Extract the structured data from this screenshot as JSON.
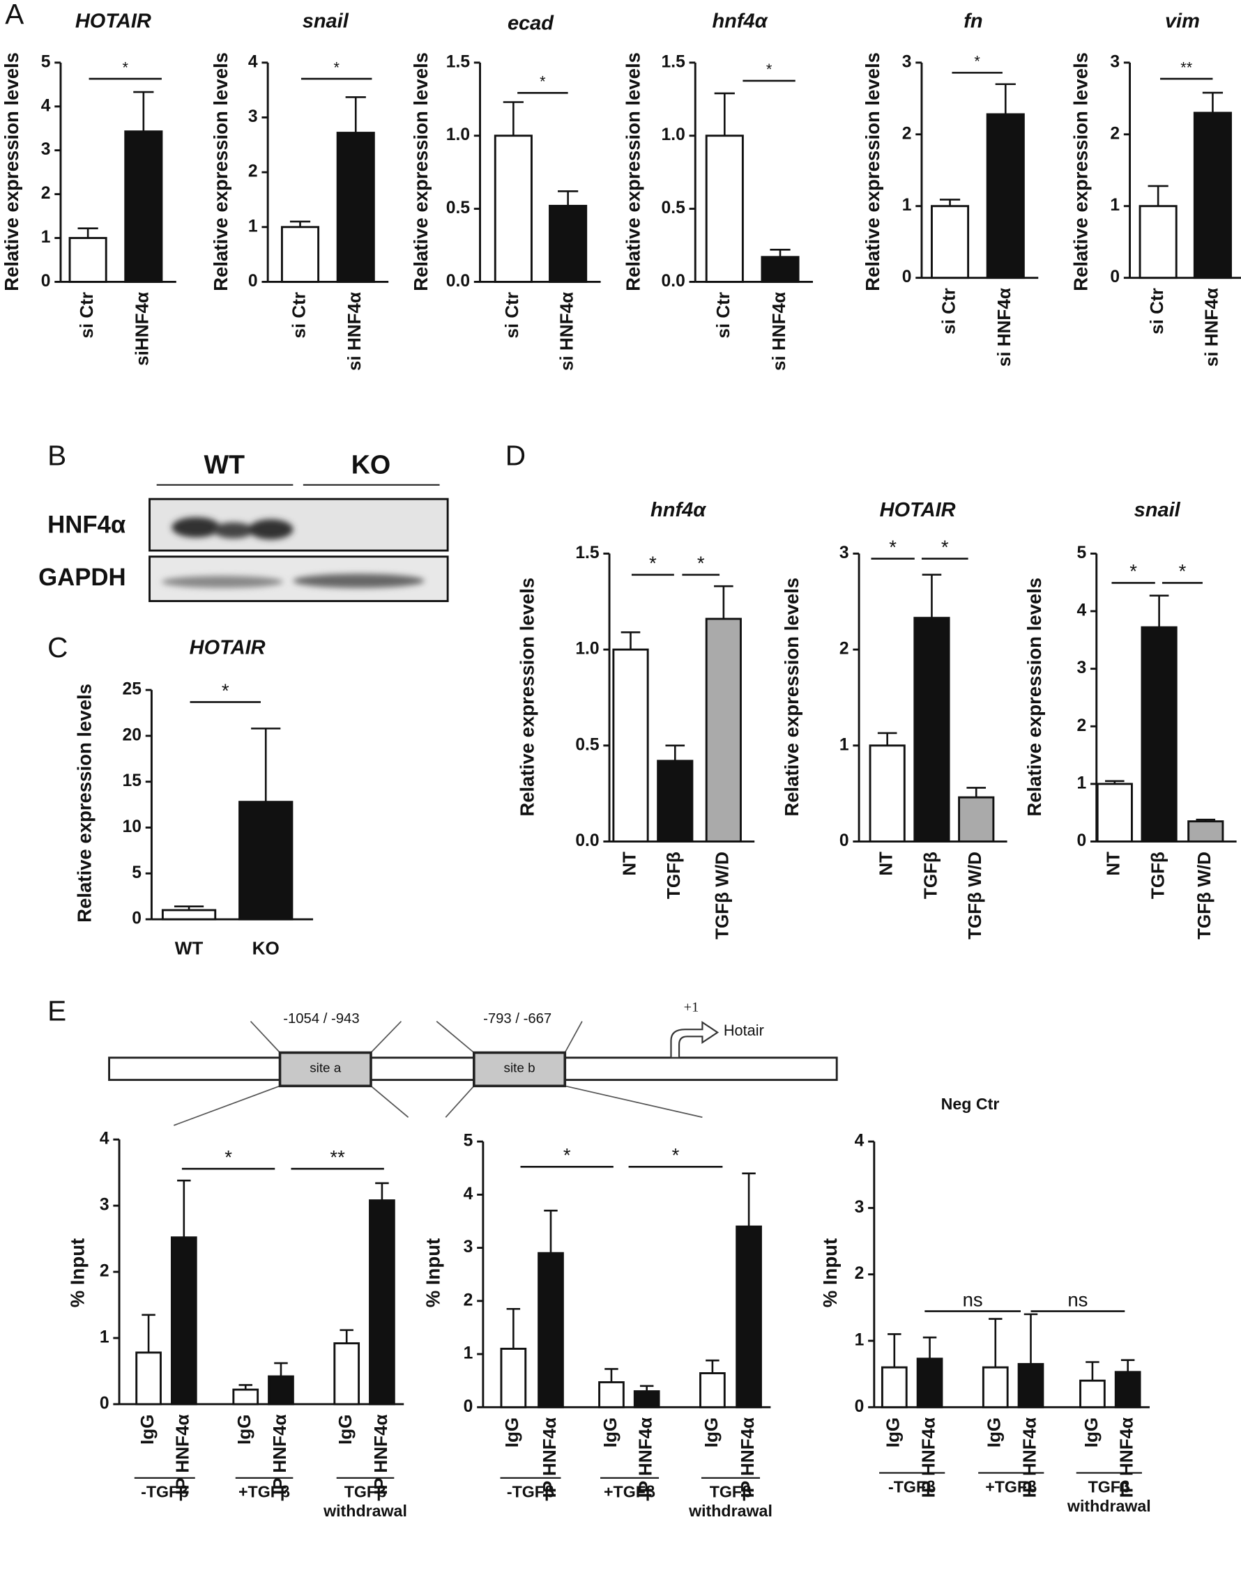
{
  "panel_labels": [
    "A",
    "B",
    "C",
    "D",
    "E"
  ],
  "blot": {
    "columns": [
      "WT",
      "KO"
    ],
    "rows": [
      "HNF4α",
      "GAPDH"
    ]
  },
  "diagram": {
    "region_a": "-1054 / -943",
    "region_b": "-793 / -667",
    "site_a": "site a",
    "site_b": "site b",
    "tss": "+1",
    "gene": "Hotair"
  },
  "chart_data": [
    {
      "type": "bar",
      "title": "HOTAIR",
      "ylabel": "Relative expression levels",
      "categories": [
        "si Ctr",
        "siHNF4α"
      ],
      "values": [
        1.0,
        3.43
      ],
      "errors": [
        0.22,
        0.9
      ],
      "colors": [
        "#ffffff",
        "#111111"
      ],
      "ylim": [
        0,
        5
      ],
      "yticks": [
        0,
        1,
        2,
        3,
        4,
        5
      ],
      "significance": [
        "*"
      ]
    },
    {
      "type": "bar",
      "title": "snail",
      "ylabel": "Relative expression levels",
      "categories": [
        "si Ctr",
        "si HNF4α"
      ],
      "values": [
        1.0,
        2.72
      ],
      "errors": [
        0.1,
        0.65
      ],
      "colors": [
        "#ffffff",
        "#111111"
      ],
      "ylim": [
        0,
        4
      ],
      "yticks": [
        0,
        1,
        2,
        3,
        4
      ],
      "significance": [
        "*"
      ]
    },
    {
      "type": "bar",
      "title": "ecad",
      "ylabel": "Relative expression levels",
      "categories": [
        "si Ctr",
        "si HNF4α"
      ],
      "values": [
        1.0,
        0.52
      ],
      "errors": [
        0.23,
        0.1
      ],
      "colors": [
        "#ffffff",
        "#111111"
      ],
      "ylim": [
        0,
        1.5
      ],
      "yticks": [
        {
          "value": 0,
          "label": "0.0"
        },
        0.5,
        {
          "value": 1,
          "label": "1.0"
        },
        1.5
      ],
      "significance": [
        "*"
      ]
    },
    {
      "type": "bar",
      "title": "hnf4α",
      "ylabel": "Relative expression levels",
      "categories": [
        "si Ctr",
        "si HNF4α"
      ],
      "values": [
        1.0,
        0.17
      ],
      "errors": [
        0.29,
        0.05
      ],
      "colors": [
        "#ffffff",
        "#111111"
      ],
      "ylim": [
        0,
        1.5
      ],
      "yticks": [
        {
          "value": 0,
          "label": "0.0"
        },
        0.5,
        {
          "value": 1,
          "label": "1.0"
        },
        1.5
      ],
      "significance": [
        "*"
      ]
    },
    {
      "type": "bar",
      "title": "fn",
      "ylabel": "Relative expression levels",
      "categories": [
        "si Ctr",
        "si HNF4α"
      ],
      "values": [
        1.0,
        2.28
      ],
      "errors": [
        0.09,
        0.42
      ],
      "colors": [
        "#ffffff",
        "#111111"
      ],
      "ylim": [
        0,
        3
      ],
      "yticks": [
        0,
        1,
        2,
        3
      ],
      "significance": [
        "*"
      ]
    },
    {
      "type": "bar",
      "title": "vim",
      "ylabel": "Relative expression levels",
      "categories": [
        "si Ctr",
        "si HNF4α"
      ],
      "values": [
        1.0,
        2.3
      ],
      "errors": [
        0.28,
        0.28
      ],
      "colors": [
        "#ffffff",
        "#111111"
      ],
      "ylim": [
        0,
        3
      ],
      "yticks": [
        0,
        1,
        2,
        3
      ],
      "significance": [
        "**"
      ]
    },
    {
      "type": "bar",
      "title": "HOTAIR",
      "ylabel": "Relative expression levels",
      "categories": [
        "WT",
        "KO"
      ],
      "values": [
        1.0,
        12.8
      ],
      "errors": [
        0.4,
        8.0
      ],
      "colors": [
        "#ffffff",
        "#111111"
      ],
      "ylim": [
        0,
        25
      ],
      "yticks": [
        0,
        5,
        10,
        15,
        20,
        25
      ],
      "significance": [
        "*"
      ]
    },
    {
      "type": "bar",
      "title": "hnf4α",
      "ylabel": "Relative expression levels",
      "categories": [
        "NT",
        "TGFβ",
        "TGFβ W/D"
      ],
      "values": [
        1.0,
        0.42,
        1.16
      ],
      "errors": [
        0.09,
        0.08,
        0.17
      ],
      "colors": [
        "#ffffff",
        "#111111",
        "#aaaaaa"
      ],
      "ylim": [
        0,
        1.5
      ],
      "yticks": [
        {
          "value": 0,
          "label": "0.0"
        },
        0.5,
        {
          "value": 1,
          "label": "1.0"
        },
        1.5
      ],
      "significance": [
        "*",
        "*"
      ]
    },
    {
      "type": "bar",
      "title": "HOTAIR",
      "ylabel": "Relative expression levels",
      "categories": [
        "NT",
        "TGFβ",
        "TGFβ W/D"
      ],
      "values": [
        1.0,
        2.33,
        0.46
      ],
      "errors": [
        0.13,
        0.45,
        0.1
      ],
      "colors": [
        "#ffffff",
        "#111111",
        "#aaaaaa"
      ],
      "ylim": [
        0,
        3
      ],
      "yticks": [
        0,
        1,
        2,
        3
      ],
      "significance": [
        "*",
        "*"
      ]
    },
    {
      "type": "bar",
      "title": "snail",
      "ylabel": "Relative expression levels",
      "categories": [
        "NT",
        "TGFβ",
        "TGFβ W/D"
      ],
      "values": [
        1.0,
        3.72,
        0.35
      ],
      "errors": [
        0.05,
        0.55,
        0.03
      ],
      "colors": [
        "#ffffff",
        "#111111",
        "#aaaaaa"
      ],
      "ylim": [
        0,
        5
      ],
      "yticks": [
        0,
        1,
        2,
        3,
        4,
        5
      ],
      "significance": [
        "*",
        "*"
      ]
    },
    {
      "type": "bar",
      "ylabel": "% Input",
      "categories": [
        "IgG",
        "IP HNF4α",
        "IgG",
        "IP HNF4α",
        "IgG",
        "IP HNF4α"
      ],
      "values": [
        0.78,
        2.52,
        0.22,
        0.42,
        0.92,
        3.08
      ],
      "errors": [
        0.57,
        0.86,
        0.07,
        0.2,
        0.2,
        0.26
      ],
      "colors": [
        "#ffffff",
        "#111111",
        "#ffffff",
        "#111111",
        "#ffffff",
        "#111111"
      ],
      "groups": [
        [
          "-TGFβ"
        ],
        [
          "+TGFβ"
        ],
        [
          "TGFβ",
          "withdrawal"
        ]
      ],
      "ylim": [
        0,
        4
      ],
      "yticks": [
        0,
        1,
        2,
        3,
        4
      ],
      "significance": [
        "*",
        "**"
      ]
    },
    {
      "type": "bar",
      "ylabel": "% Input",
      "categories": [
        "IgG",
        "IP HNF4α",
        "IgG",
        "IP HNF4α",
        "IgG",
        "IP HNF4α"
      ],
      "values": [
        1.1,
        2.9,
        0.47,
        0.3,
        0.64,
        3.4
      ],
      "errors": [
        0.75,
        0.8,
        0.25,
        0.1,
        0.24,
        1.0
      ],
      "colors": [
        "#ffffff",
        "#111111",
        "#ffffff",
        "#111111",
        "#ffffff",
        "#111111"
      ],
      "groups": [
        [
          "-TGFβ"
        ],
        [
          "+TGFβ"
        ],
        [
          "TGFβ",
          "withdrawal"
        ]
      ],
      "ylim": [
        0,
        5
      ],
      "yticks": [
        0,
        1,
        2,
        3,
        4,
        5
      ],
      "significance": [
        "*",
        "*"
      ]
    },
    {
      "type": "bar",
      "title": "Neg Ctr",
      "ylabel": "% Input",
      "categories": [
        "IgG",
        "IP HNF4α",
        "IgG",
        "IP HNF4α",
        "IgG",
        "IP HNF4α"
      ],
      "values": [
        0.6,
        0.73,
        0.6,
        0.65,
        0.4,
        0.53
      ],
      "errors": [
        0.5,
        0.32,
        0.73,
        0.75,
        0.28,
        0.18
      ],
      "colors": [
        "#ffffff",
        "#111111",
        "#ffffff",
        "#111111",
        "#ffffff",
        "#111111"
      ],
      "groups": [
        [
          "-TGFβ"
        ],
        [
          "+TGFβ"
        ],
        [
          "TGFβ",
          "withdrawal"
        ]
      ],
      "ylim": [
        0,
        4
      ],
      "yticks": [
        0,
        1,
        2,
        3,
        4
      ],
      "significance": [
        "ns",
        "ns"
      ]
    }
  ]
}
